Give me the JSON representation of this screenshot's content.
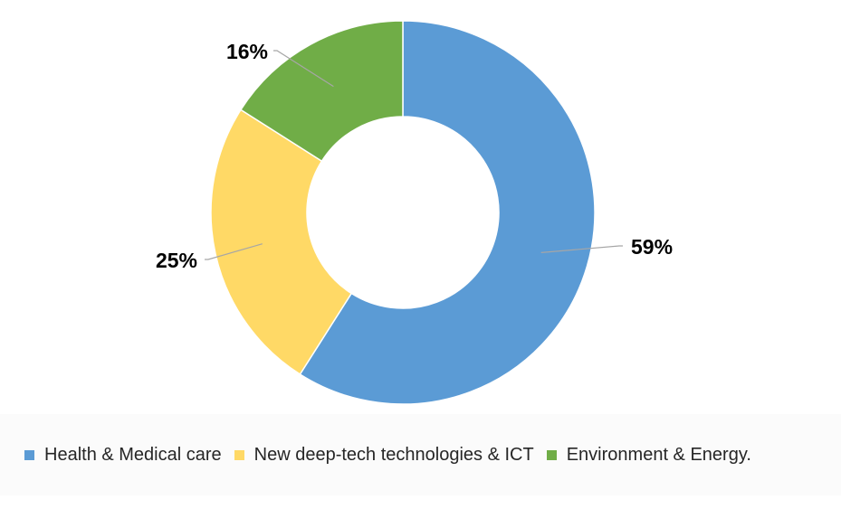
{
  "chart_data": {
    "type": "pie",
    "title": "",
    "donut": true,
    "legend_position": "bottom",
    "categories": [
      "Health & Medical care",
      "New deep-tech technologies & ICT",
      "Environment & Energy."
    ],
    "values": [
      59,
      25,
      16
    ],
    "data_labels": [
      "59%",
      "25%",
      "16%"
    ],
    "colors": [
      "#5b9bd5",
      "#ffd966",
      "#70ad47"
    ]
  }
}
